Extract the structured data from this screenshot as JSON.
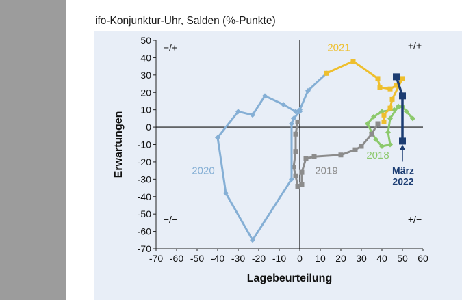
{
  "title": "ifo-Konjunktur-Uhr, Salden (%-Punkte)",
  "chart_data": {
    "type": "line",
    "title": "ifo-Konjunktur-Uhr, Salden (%-Punkte)",
    "xlabel": "Lagebeurteilung",
    "ylabel": "Erwartungen",
    "xlim": [
      -70,
      60
    ],
    "ylim": [
      -70,
      50
    ],
    "x_ticks": [
      "-70",
      "-60",
      "-50",
      "-40",
      "-30",
      "-20",
      "-10",
      "0",
      "10",
      "20",
      "30",
      "40",
      "50",
      "60"
    ],
    "y_ticks": [
      "50",
      "40",
      "30",
      "20",
      "10",
      "0",
      "-10",
      "-20",
      "-30",
      "-40",
      "-50",
      "-60",
      "-70"
    ],
    "quadrant_labels": [
      "−/+",
      "+/+",
      "−/−",
      "+/−"
    ],
    "grid": false,
    "series": [
      {
        "name": "2018",
        "color": "#8cc96c",
        "marker": "diamond",
        "points": [
          [
            48,
            12
          ],
          [
            44,
            5
          ],
          [
            43,
            -3
          ],
          [
            44,
            -10
          ],
          [
            40,
            -11
          ],
          [
            37,
            -7
          ],
          [
            35,
            -3
          ],
          [
            33,
            2
          ],
          [
            36,
            6
          ],
          [
            40,
            9
          ],
          [
            46,
            10
          ],
          [
            50,
            12
          ],
          [
            52,
            9
          ],
          [
            55,
            5
          ]
        ]
      },
      {
        "name": "2019",
        "color": "#8c8c8c",
        "marker": "square",
        "points": [
          [
            38,
            2
          ],
          [
            35,
            -4
          ],
          [
            30,
            -11
          ],
          [
            27,
            -13
          ],
          [
            20,
            -16
          ],
          [
            7,
            -17
          ],
          [
            3,
            -18
          ],
          [
            1,
            -26
          ],
          [
            1,
            -33
          ],
          [
            -1,
            -34
          ],
          [
            -2,
            -28
          ],
          [
            -3,
            -23
          ],
          [
            -2,
            -14
          ],
          [
            -2,
            -4
          ],
          [
            -1,
            3
          ]
        ]
      },
      {
        "name": "2020",
        "color": "#85afd5",
        "marker": "diamond",
        "points": [
          [
            0,
            9
          ],
          [
            -3,
            5
          ],
          [
            -4,
            2
          ],
          [
            -4,
            -30
          ],
          [
            -23,
            -65
          ],
          [
            -36,
            -38
          ],
          [
            -40,
            -6
          ],
          [
            -30,
            9
          ],
          [
            -23,
            7
          ],
          [
            -17,
            18
          ],
          [
            -8,
            13
          ],
          [
            -2,
            9
          ],
          [
            0,
            10
          ],
          [
            4,
            21
          ],
          [
            13,
            31
          ]
        ]
      },
      {
        "name": "2021",
        "color": "#eebf2e",
        "marker": "square",
        "points": [
          [
            13,
            31
          ],
          [
            26,
            38
          ],
          [
            38,
            28
          ],
          [
            39,
            23
          ],
          [
            44,
            22
          ],
          [
            47,
            24
          ],
          [
            50,
            28
          ],
          [
            45,
            16
          ],
          [
            44,
            11
          ],
          [
            41,
            7
          ],
          [
            41,
            3
          ]
        ]
      },
      {
        "name": "2022",
        "color": "#1c3d73",
        "marker": "square",
        "points": [
          [
            47,
            29
          ],
          [
            50,
            18
          ],
          [
            50,
            -8
          ]
        ]
      }
    ],
    "series_labels": [
      {
        "text": "2021",
        "color": "#eebf2e",
        "x": 19,
        "y": 44
      },
      {
        "text": "2020",
        "color": "#85afd5",
        "x": -47,
        "y": -27
      },
      {
        "text": "2019",
        "color": "#8c8c8c",
        "x": 13,
        "y": -27
      },
      {
        "text": "2018",
        "color": "#8cc96c",
        "x": 38,
        "y": -18
      }
    ],
    "annotation": {
      "lines": [
        "März",
        "2022"
      ],
      "color": "#1c3d73",
      "point": [
        50,
        -8
      ]
    }
  }
}
